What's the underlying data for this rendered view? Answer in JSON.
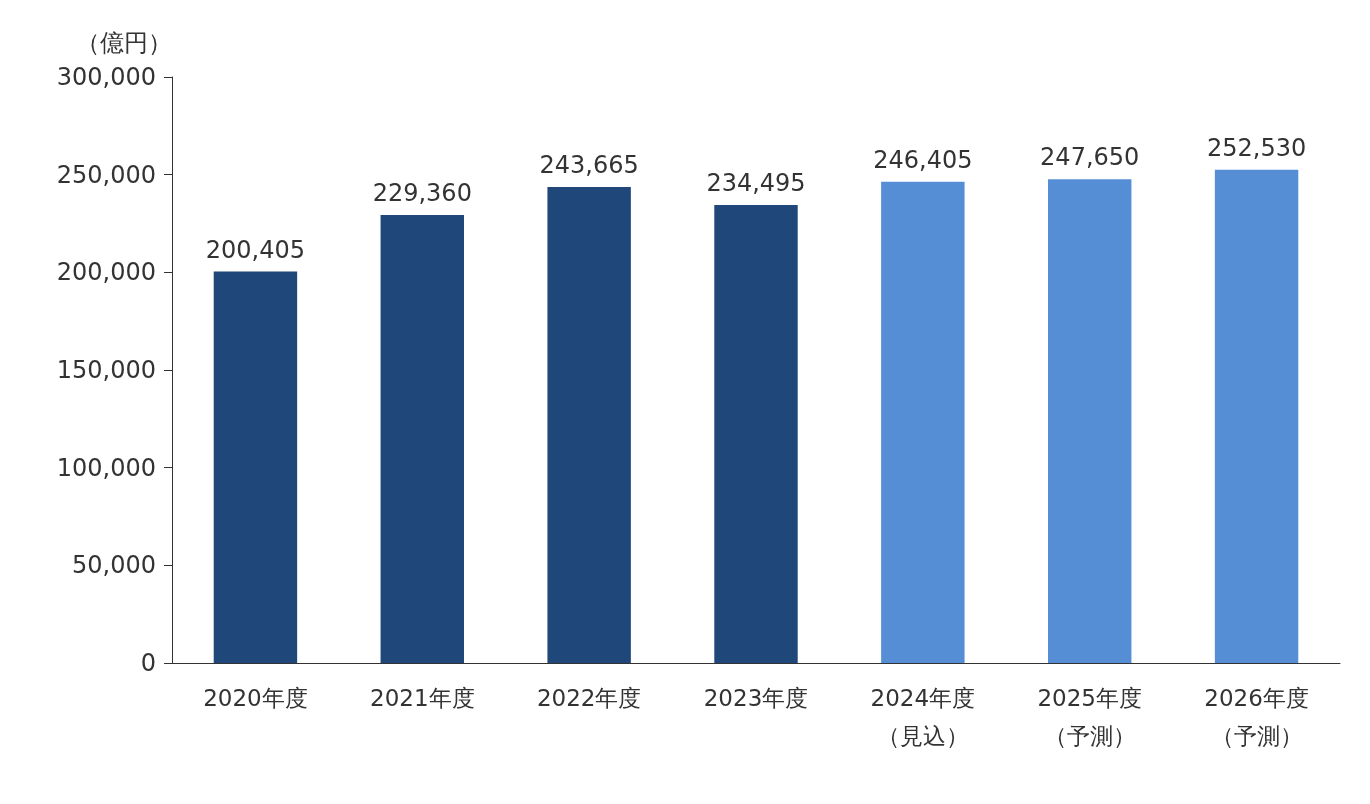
{
  "chart_data": {
    "type": "bar",
    "ylabel": "（億円）",
    "categories": [
      "2020年度",
      "2021年度",
      "2022年度",
      "2023年度",
      "2024年度（見込）",
      "2025年度（予測）",
      "2026年度（予測）"
    ],
    "values": [
      200405,
      229360,
      243665,
      234495,
      246405,
      247650,
      252530
    ],
    "value_labels": [
      "200,405",
      "229,360",
      "243,665",
      "234,495",
      "246,405",
      "247,650",
      "252,530"
    ],
    "colors": [
      "#1f477a",
      "#1f477a",
      "#1f477a",
      "#1f477a",
      "#558ed5",
      "#558ed5",
      "#558ed5"
    ],
    "ylim": [
      0,
      300000
    ],
    "yticks": [
      0,
      {
        "value": 50000,
        "label": "50,000"
      },
      {
        "value": 100000,
        "label": "100,000"
      },
      {
        "value": 150000,
        "label": "150,000"
      },
      {
        "value": 200000,
        "label": "200,000"
      },
      {
        "value": 250000,
        "label": "250,000"
      },
      {
        "value": 300000,
        "label": "300,000"
      }
    ],
    "grid": false
  }
}
